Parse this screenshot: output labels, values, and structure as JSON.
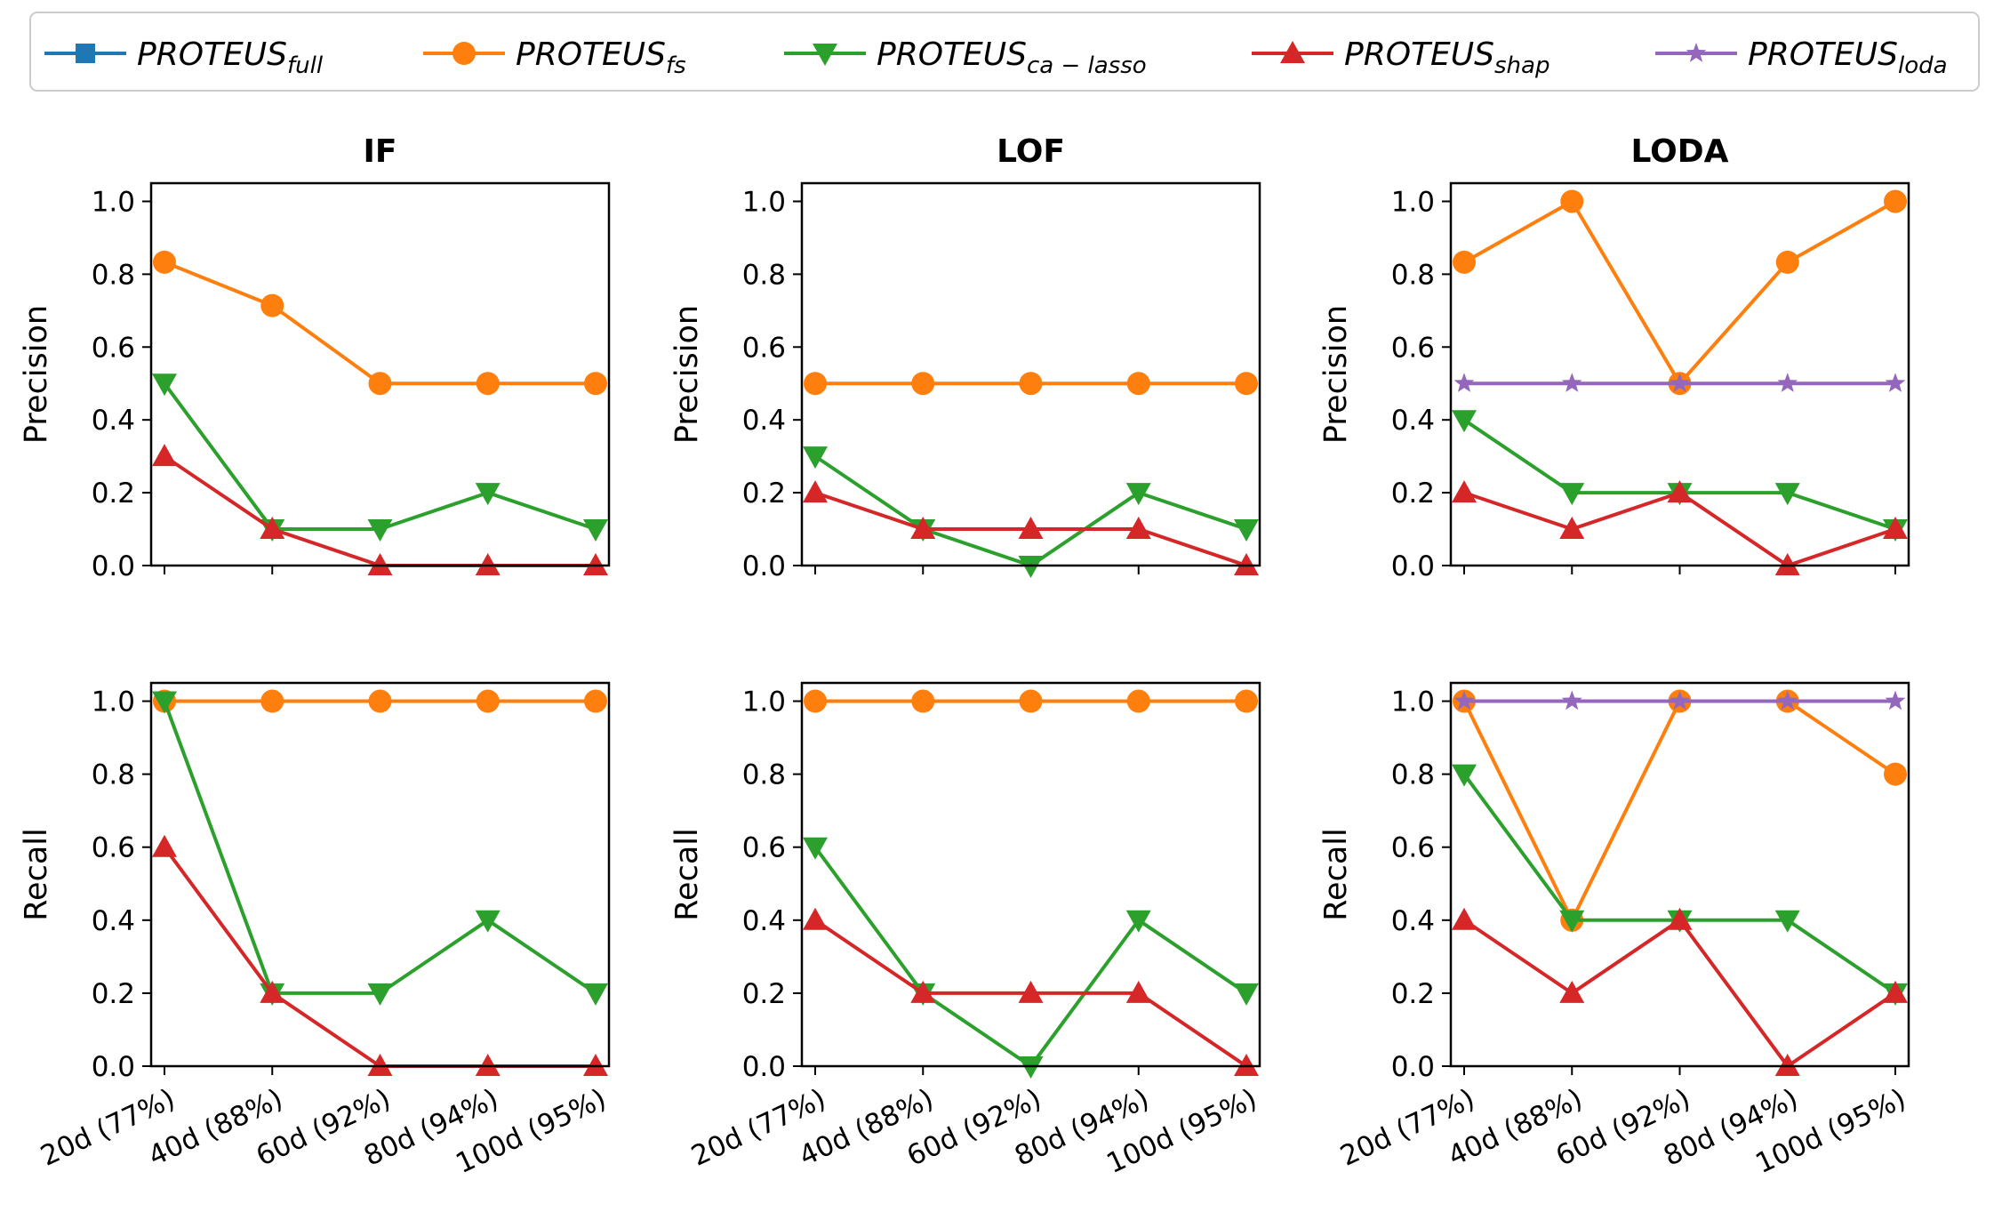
{
  "chart_data": {
    "type": "line",
    "categories": [
      "20d (77%)",
      "40d (88%)",
      "60d (92%)",
      "80d (94%)",
      "100d (95%)"
    ],
    "y_ticks": [
      "0.0",
      "0.2",
      "0.4",
      "0.6",
      "0.8",
      "1.0"
    ],
    "ylim": [
      0,
      1.05
    ],
    "legend": [
      {
        "key": "full",
        "base": "PROTEUS",
        "sub": "full",
        "color": "#1f77b4",
        "marker": "square"
      },
      {
        "key": "fs",
        "base": "PROTEUS",
        "sub": "fs",
        "color": "#ff7f0e",
        "marker": "circle"
      },
      {
        "key": "ca_lasso",
        "base": "PROTEUS",
        "sub": "ca − lasso",
        "color": "#2ca02c",
        "marker": "triangle-down"
      },
      {
        "key": "shap",
        "base": "PROTEUS",
        "sub": "shap",
        "color": "#d62728",
        "marker": "triangle-up"
      },
      {
        "key": "loda",
        "base": "PROTEUS",
        "sub": "loda",
        "color": "#9467bd",
        "marker": "star"
      }
    ],
    "panels": [
      {
        "id": "if-precision",
        "title": "IF",
        "ylabel": "Precision",
        "row": 0,
        "col": 0,
        "series": [
          {
            "key": "fs",
            "values": [
              0.833,
              0.714,
              0.5,
              0.5,
              0.5
            ]
          },
          {
            "key": "ca_lasso",
            "values": [
              0.5,
              0.1,
              0.1,
              0.2,
              0.1
            ]
          },
          {
            "key": "shap",
            "values": [
              0.3,
              0.1,
              0.0,
              0.0,
              0.0
            ]
          }
        ]
      },
      {
        "id": "lof-precision",
        "title": "LOF",
        "ylabel": "Precision",
        "row": 0,
        "col": 1,
        "series": [
          {
            "key": "fs",
            "values": [
              0.5,
              0.5,
              0.5,
              0.5,
              0.5
            ]
          },
          {
            "key": "ca_lasso",
            "values": [
              0.3,
              0.1,
              0.0,
              0.2,
              0.1
            ]
          },
          {
            "key": "shap",
            "values": [
              0.2,
              0.1,
              0.1,
              0.1,
              0.0
            ]
          }
        ]
      },
      {
        "id": "loda-precision",
        "title": "LODA",
        "ylabel": "Precision",
        "row": 0,
        "col": 2,
        "series": [
          {
            "key": "fs",
            "values": [
              0.833,
              1.0,
              0.5,
              0.833,
              1.0
            ]
          },
          {
            "key": "loda",
            "values": [
              0.5,
              0.5,
              0.5,
              0.5,
              0.5
            ]
          },
          {
            "key": "ca_lasso",
            "values": [
              0.4,
              0.2,
              0.2,
              0.2,
              0.1
            ]
          },
          {
            "key": "shap",
            "values": [
              0.2,
              0.1,
              0.2,
              0.0,
              0.1
            ]
          }
        ]
      },
      {
        "id": "if-recall",
        "title": "",
        "ylabel": "Recall",
        "row": 1,
        "col": 0,
        "series": [
          {
            "key": "fs",
            "values": [
              1.0,
              1.0,
              1.0,
              1.0,
              1.0
            ]
          },
          {
            "key": "ca_lasso",
            "values": [
              1.0,
              0.2,
              0.2,
              0.4,
              0.2
            ]
          },
          {
            "key": "shap",
            "values": [
              0.6,
              0.2,
              0.0,
              0.0,
              0.0
            ]
          }
        ]
      },
      {
        "id": "lof-recall",
        "title": "",
        "ylabel": "Recall",
        "row": 1,
        "col": 1,
        "series": [
          {
            "key": "fs",
            "values": [
              1.0,
              1.0,
              1.0,
              1.0,
              1.0
            ]
          },
          {
            "key": "ca_lasso",
            "values": [
              0.6,
              0.2,
              0.0,
              0.4,
              0.2
            ]
          },
          {
            "key": "shap",
            "values": [
              0.4,
              0.2,
              0.2,
              0.2,
              0.0
            ]
          }
        ]
      },
      {
        "id": "loda-recall",
        "title": "",
        "ylabel": "Recall",
        "row": 1,
        "col": 2,
        "series": [
          {
            "key": "fs",
            "values": [
              1.0,
              0.4,
              1.0,
              1.0,
              0.8
            ]
          },
          {
            "key": "ca_lasso",
            "values": [
              0.8,
              0.4,
              0.4,
              0.4,
              0.2
            ]
          },
          {
            "key": "shap",
            "values": [
              0.4,
              0.2,
              0.4,
              0.0,
              0.2
            ]
          },
          {
            "key": "loda",
            "values": [
              1.0,
              1.0,
              1.0,
              1.0,
              1.0
            ]
          }
        ]
      }
    ]
  }
}
